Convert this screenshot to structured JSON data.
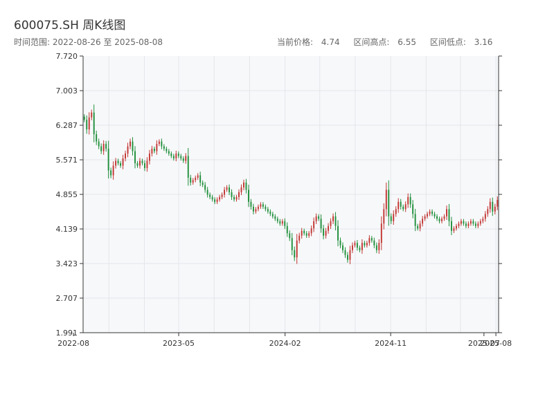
{
  "header": {
    "title": "600075.SH 周K线图",
    "range_label": "时间范围:",
    "range_start": "2022-08-26",
    "range_sep": "至",
    "range_end": "2025-08-08",
    "current_price_label": "当前价格:",
    "current_price": "4.74",
    "high_label": "区间高点:",
    "high": "6.55",
    "low_label": "区间低点:",
    "low": "3.16"
  },
  "colors": {
    "up": "#c23531",
    "down": "#1f8f3a",
    "plot_bg": "#f7f8fa",
    "grid": "#e3e6ea",
    "axis": "#333333"
  },
  "chart_data": {
    "type": "candlestick",
    "title": "600075.SH 周K线图",
    "xlabel": "",
    "ylabel": "",
    "ylim": [
      1.991,
      7.72
    ],
    "y_ticks": [
      "7.720",
      "7.003",
      "6.287",
      "5.571",
      "4.855",
      "4.139",
      "3.423",
      "2.707",
      "1.991"
    ],
    "x_ticks": [
      "2022-08",
      "2023-05",
      "2024-02",
      "2024-11",
      "2025-07",
      "2025-08"
    ],
    "x_range": [
      "2022-08-26",
      "2025-08-08"
    ],
    "grid": true,
    "closes": [
      6.4,
      6.2,
      6.45,
      6.55,
      6.1,
      5.95,
      5.85,
      5.75,
      5.9,
      5.8,
      5.35,
      5.25,
      5.45,
      5.55,
      5.5,
      5.45,
      5.6,
      5.7,
      5.85,
      5.95,
      5.75,
      5.5,
      5.45,
      5.55,
      5.5,
      5.4,
      5.55,
      5.7,
      5.8,
      5.75,
      5.9,
      5.95,
      5.85,
      5.8,
      5.75,
      5.7,
      5.65,
      5.6,
      5.7,
      5.65,
      5.6,
      5.55,
      5.65,
      5.2,
      5.1,
      5.15,
      5.2,
      5.25,
      5.1,
      5.05,
      4.95,
      4.85,
      4.8,
      4.75,
      4.7,
      4.75,
      4.8,
      4.85,
      4.95,
      5.0,
      4.9,
      4.8,
      4.75,
      4.8,
      4.9,
      5.0,
      5.1,
      4.95,
      4.7,
      4.6,
      4.5,
      4.55,
      4.6,
      4.65,
      4.6,
      4.55,
      4.5,
      4.45,
      4.4,
      4.35,
      4.3,
      4.25,
      4.3,
      4.2,
      4.05,
      3.95,
      3.7,
      3.55,
      3.9,
      4.0,
      4.1,
      4.05,
      4.0,
      4.05,
      4.15,
      4.3,
      4.4,
      4.35,
      4.15,
      4.0,
      4.1,
      4.2,
      4.3,
      4.4,
      4.2,
      3.9,
      3.8,
      3.7,
      3.6,
      3.5,
      3.7,
      3.8,
      3.85,
      3.75,
      3.7,
      3.85,
      3.8,
      3.85,
      3.95,
      3.9,
      3.8,
      3.7,
      3.85,
      4.25,
      4.55,
      4.95,
      4.4,
      4.3,
      4.45,
      4.55,
      4.7,
      4.6,
      4.55,
      4.65,
      4.8,
      4.65,
      4.45,
      4.2,
      4.15,
      4.25,
      4.35,
      4.4,
      4.45,
      4.5,
      4.45,
      4.4,
      4.35,
      4.3,
      4.35,
      4.4,
      4.55,
      4.3,
      4.1,
      4.15,
      4.2,
      4.25,
      4.3,
      4.25,
      4.2,
      4.25,
      4.3,
      4.25,
      4.2,
      4.25,
      4.3,
      4.35,
      4.45,
      4.55,
      4.7,
      4.5,
      4.6,
      4.74
    ]
  }
}
